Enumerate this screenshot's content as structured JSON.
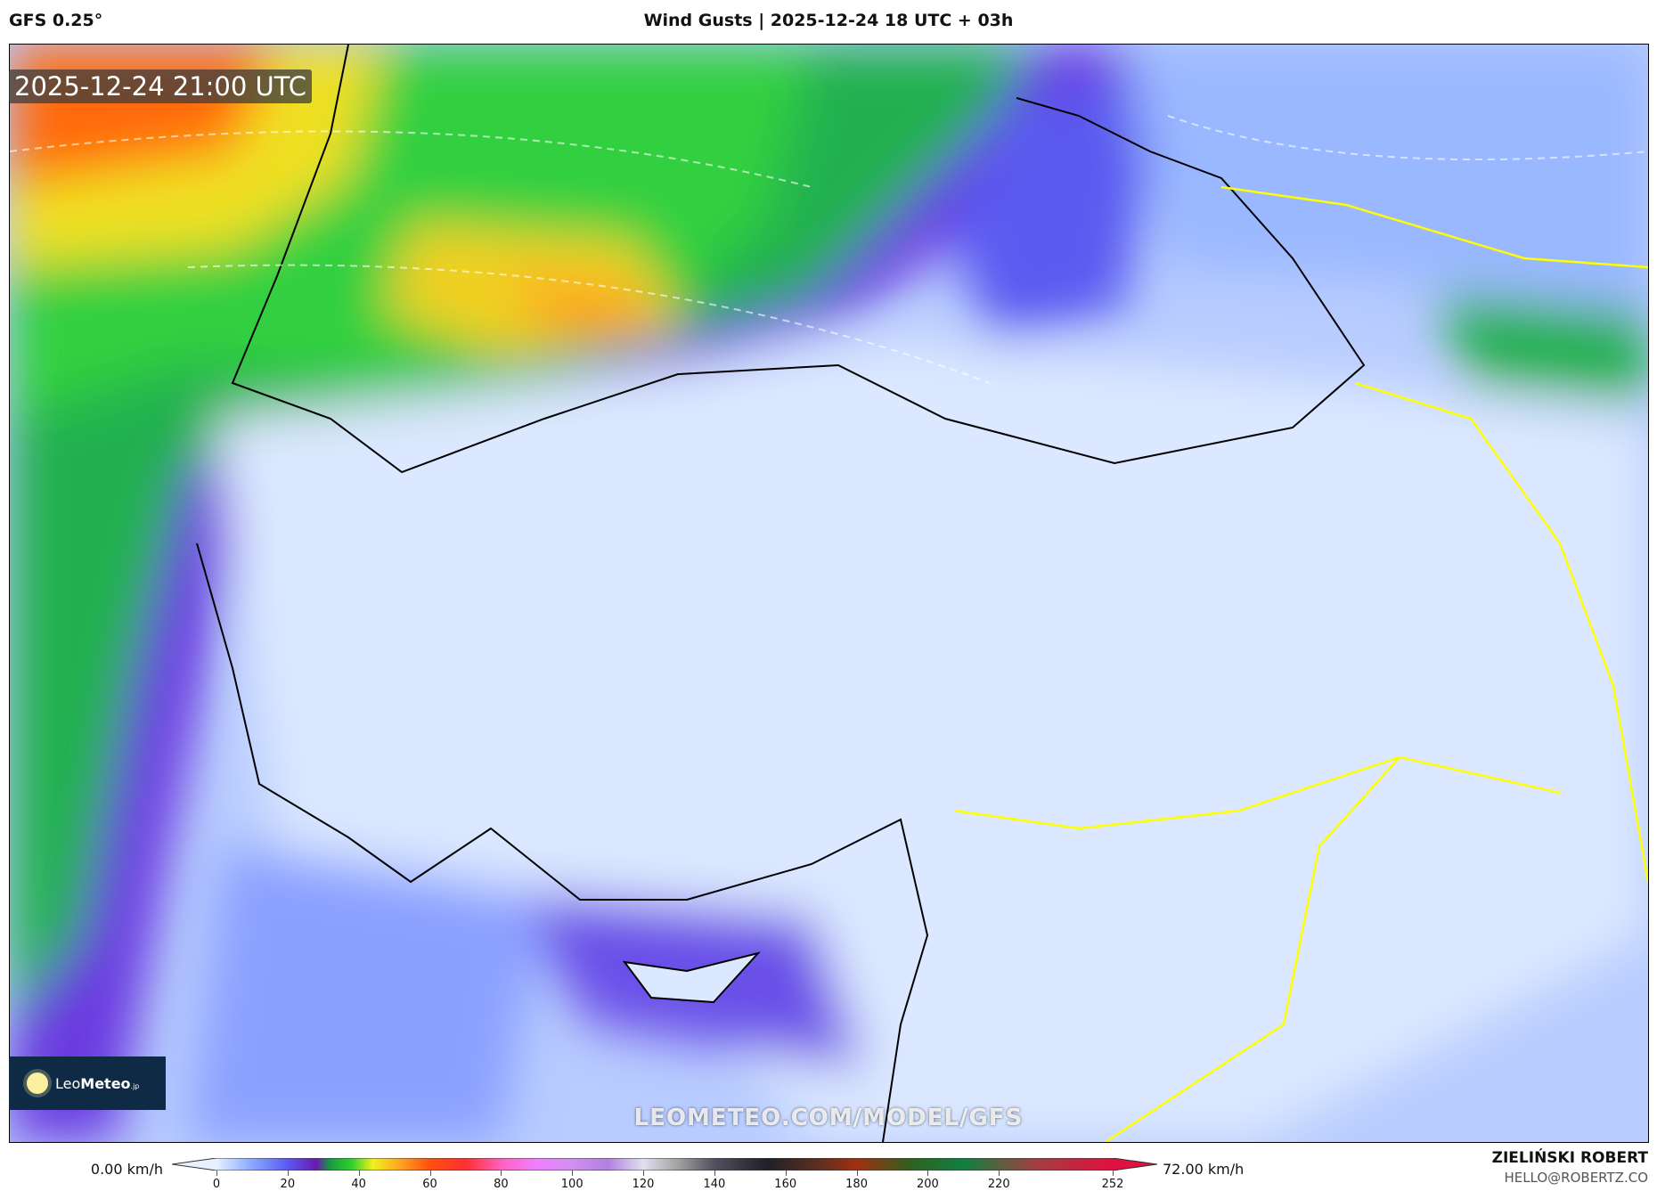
{
  "header": {
    "model": "GFS 0.25°",
    "title": "Wind Gusts | 2025-12-24 18 UTC + 03h"
  },
  "map": {
    "valid_time": "2025-12-24 21:00 UTC",
    "watermark": "LEOMETEO.COM/MODEL/GFS",
    "logo": {
      "light": "Leo",
      "bold": "Meteo",
      "suffix": ".jp"
    }
  },
  "colorbar": {
    "min_label": "0.00 km/h",
    "max_label": "72.00 km/h",
    "ticks": [
      "0",
      "20",
      "40",
      "60",
      "80",
      "100",
      "120",
      "140",
      "160",
      "180",
      "200",
      "220",
      "252"
    ],
    "stops": [
      [
        0,
        "#e6f0ff"
      ],
      [
        10,
        "#8aa8ff"
      ],
      [
        20,
        "#5a5af0"
      ],
      [
        28,
        "#6a1ab0"
      ],
      [
        32,
        "#1a9a40"
      ],
      [
        38,
        "#30d030"
      ],
      [
        44,
        "#f0f020"
      ],
      [
        52,
        "#ffa020"
      ],
      [
        60,
        "#ff5010"
      ],
      [
        70,
        "#ff3030"
      ],
      [
        80,
        "#ff60c0"
      ],
      [
        90,
        "#f080ff"
      ],
      [
        100,
        "#d090f0"
      ],
      [
        110,
        "#b080e0"
      ],
      [
        120,
        "#e0e0f0"
      ],
      [
        130,
        "#a0a0a0"
      ],
      [
        140,
        "#505060"
      ],
      [
        155,
        "#202028"
      ],
      [
        170,
        "#603020"
      ],
      [
        180,
        "#a03010"
      ],
      [
        195,
        "#306020"
      ],
      [
        210,
        "#108040"
      ],
      [
        230,
        "#a04040"
      ],
      [
        252,
        "#e01040"
      ]
    ]
  },
  "credits": {
    "author": "ZIELIŃSKI ROBERT",
    "email": "HELLO@ROBERTZ.CO"
  }
}
